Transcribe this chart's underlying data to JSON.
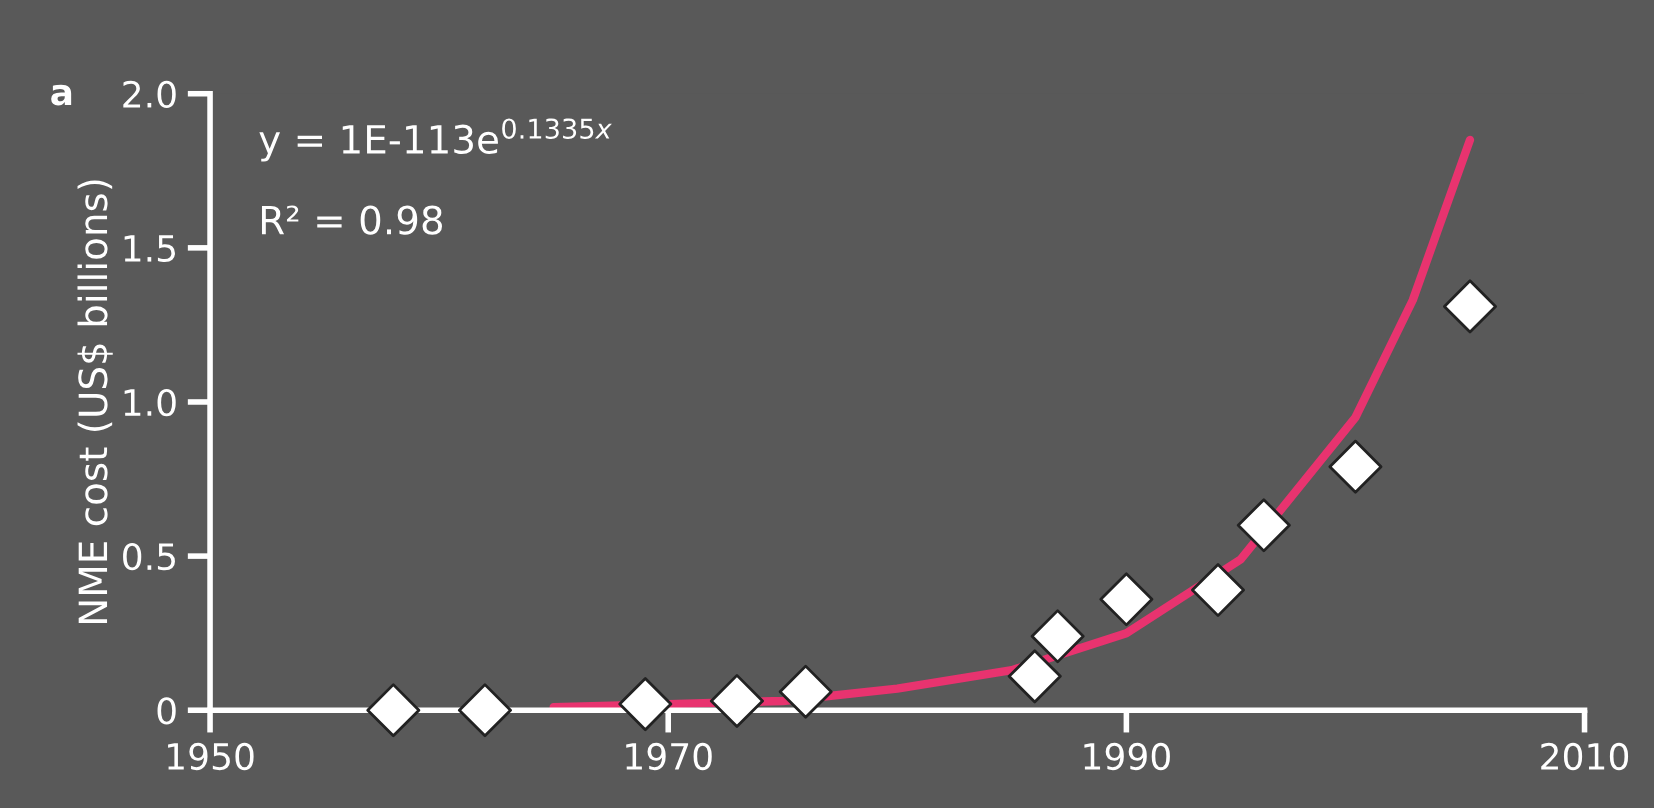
{
  "chart_data": {
    "type": "scatter",
    "ylabel": "NME cost (US$ billions)",
    "annotations": [
      "a",
      "y = 1E-113e$^{0.1335x}$",
      "R² = 0.98"
    ],
    "x": [
      1958,
      1962,
      1969,
      1973,
      1976,
      1986,
      1987,
      1990,
      1994,
      1996,
      2000,
      2005
    ],
    "series": [
      {
        "color": "#ffffff",
        "marker": "diamond",
        "values": [
          0.0,
          0.0,
          0.02,
          0.03,
          0.06,
          0.11,
          0.24,
          0.36,
          0.39,
          0.6,
          0.79,
          1.31
        ]
      },
      {
        "type": "line",
        "color": "#e8336f",
        "marker": "none",
        "x": [
          1965,
          1970,
          1975,
          1980,
          1985,
          1990,
          1995,
          2000,
          2002.5,
          2005
        ],
        "values": [
          0.01,
          0.02,
          0.03,
          0.07,
          0.13,
          0.25,
          0.49,
          0.95,
          1.33,
          1.85
        ]
      }
    ],
    "xlim": [
      1950,
      2010
    ],
    "ylim": [
      0,
      2.0
    ],
    "xticks": [
      1950,
      1970,
      1990,
      2010
    ],
    "yticks": [
      0,
      {
        "value": 0.5,
        "label": "0.5"
      },
      {
        "value": 1.0,
        "label": "1.0"
      },
      {
        "value": 1.5,
        "label": "1.5"
      },
      {
        "value": 2.0,
        "label": "2.0"
      }
    ],
    "grid": false,
    "legend": false
  }
}
